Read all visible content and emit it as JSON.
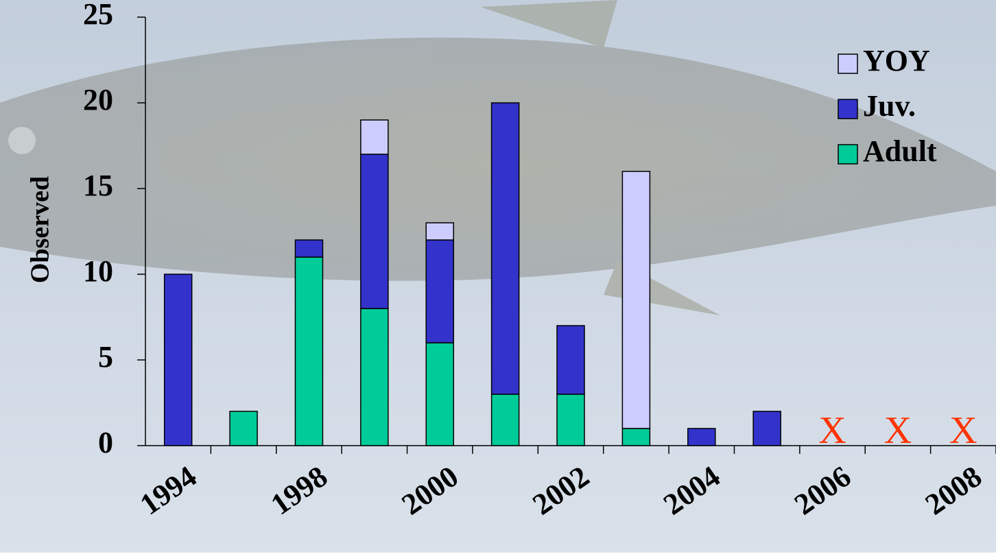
{
  "chart_data": {
    "type": "stacked-bar",
    "y_label": "Observed",
    "categories": [
      "1994",
      null,
      "1998",
      null,
      "2000",
      null,
      "2002",
      null,
      "2004",
      null,
      "2006",
      null,
      "2008"
    ],
    "series": [
      {
        "name": "Adult",
        "color": "#00cc99",
        "values": [
          0,
          2,
          11,
          8,
          6,
          3,
          3,
          1,
          0,
          0,
          null,
          null,
          null
        ]
      },
      {
        "name": "Juv.",
        "color": "#3333cc",
        "values": [
          10,
          0,
          1,
          9,
          6,
          17,
          4,
          0,
          1,
          2,
          null,
          null,
          null
        ]
      },
      {
        "name": "YOY",
        "color": "#ccccff",
        "values": [
          0,
          0,
          0,
          2,
          1,
          0,
          0,
          15,
          0,
          0,
          null,
          null,
          null
        ]
      }
    ],
    "missing_markers": [
      null,
      null,
      null,
      null,
      null,
      null,
      null,
      null,
      null,
      null,
      "X",
      "X",
      "X"
    ],
    "missing_marker_color": "#ff3300",
    "ylim": [
      0,
      25
    ],
    "yticks": [
      0,
      5,
      10,
      15,
      20,
      25
    ],
    "legend": "top-right"
  }
}
